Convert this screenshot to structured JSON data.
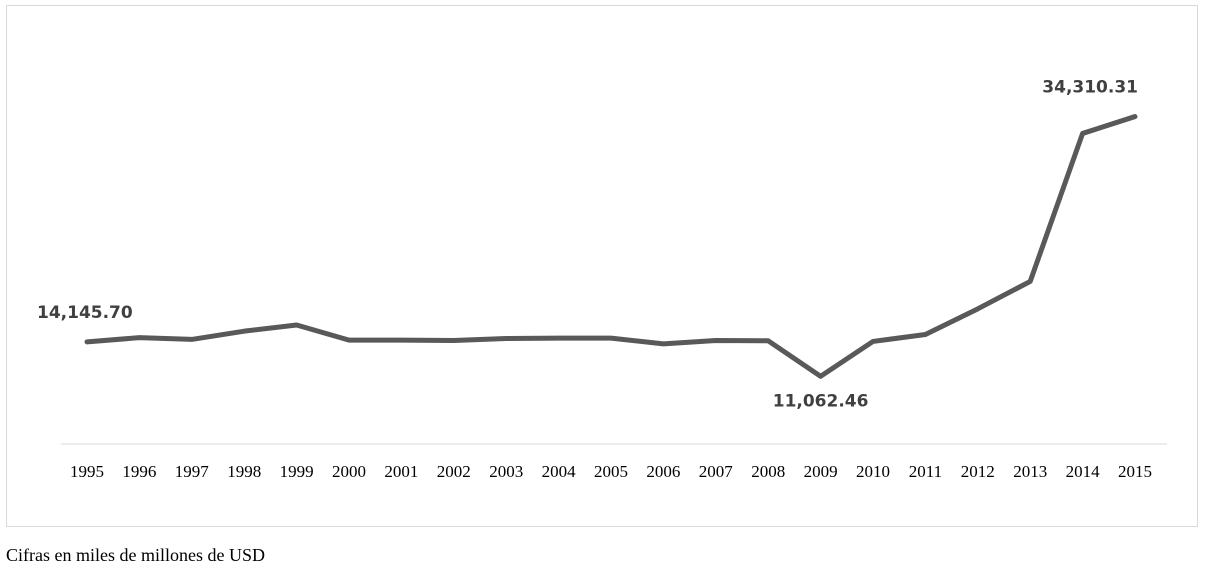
{
  "chart_data": {
    "type": "line",
    "title": "",
    "xlabel": "",
    "ylabel": "",
    "x": [
      "1995",
      "1996",
      "1997",
      "1998",
      "1999",
      "2000",
      "2001",
      "2002",
      "2003",
      "2004",
      "2005",
      "2006",
      "2007",
      "2008",
      "2009",
      "2010",
      "2011",
      "2012",
      "2013",
      "2014",
      "2015"
    ],
    "series": [
      {
        "values": [
          14145.7,
          14520,
          14360,
          15100,
          15650,
          14300,
          14300,
          14260,
          14440,
          14480,
          14480,
          13960,
          14260,
          14240,
          11062.46,
          14180,
          14800,
          17100,
          19550,
          32800,
          34310.31
        ]
      }
    ],
    "data_labels": [
      {
        "x": "1995",
        "text": "14,145.70"
      },
      {
        "x": "2009",
        "text": "11,062.46"
      },
      {
        "x": "2015",
        "text": "34,310.31"
      }
    ],
    "ylim": [
      5000,
      40000
    ],
    "y_axis_visible": false,
    "grid": false,
    "legend": "none",
    "line_color": "#595959"
  },
  "footnote": "Cifras en miles de millones de USD"
}
